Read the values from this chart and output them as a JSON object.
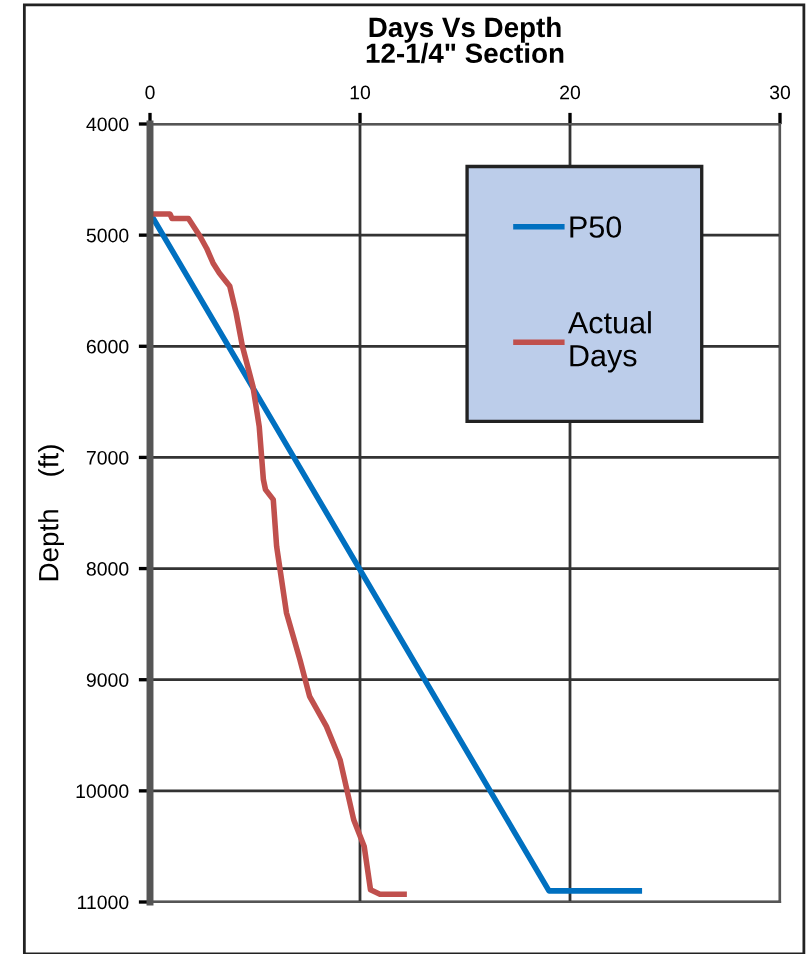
{
  "chart_data": {
    "type": "line",
    "title": "Days Vs Depth\n12-1/4\" Section",
    "ylabel": "Depth    (ft)",
    "series": [
      {
        "name": "P50",
        "color": "#0070c0",
        "x": [
          0,
          19,
          23.3
        ],
        "values": [
          4800,
          10900,
          10900
        ]
      },
      {
        "name": "Actual\nDays",
        "color": "#c0504d",
        "x": [
          0,
          0.95,
          1.05,
          1.83,
          2.38,
          2.7,
          3.0,
          3.3,
          3.8,
          4.1,
          4.4,
          4.9,
          5.2,
          5.4,
          5.5,
          5.87,
          6.03,
          6.5,
          7.14,
          7.6,
          8.4,
          9.05,
          9.7,
          10.2,
          10.5,
          10.95,
          12.1
        ],
        "values": [
          4810,
          4810,
          4850,
          4850,
          5010,
          5120,
          5250,
          5340,
          5460,
          5700,
          6000,
          6360,
          6720,
          7200,
          7290,
          7380,
          7800,
          8400,
          8820,
          9150,
          9420,
          9720,
          10260,
          10500,
          10890,
          10930,
          10930
        ]
      }
    ],
    "xlim": [
      0,
      30
    ],
    "xticks": [
      0,
      10,
      20,
      30
    ],
    "ylim": [
      11000,
      4000
    ],
    "yticks": [
      4000,
      5000,
      6000,
      7000,
      8000,
      9000,
      10000,
      11000
    ],
    "grid": true,
    "legend": "top right",
    "marker": "none",
    "line_style": "solid"
  }
}
